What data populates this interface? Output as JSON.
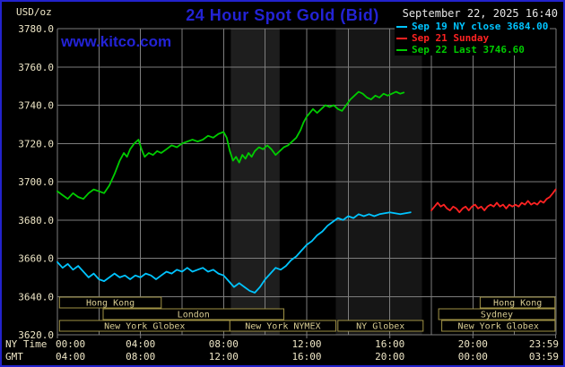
{
  "colors": {
    "background": "#000000",
    "border_blue": "#2222cc",
    "title_blue": "#2323d6",
    "axis_text": "#eee6c6",
    "date_text": "#e6e6e6",
    "grid": "#7d7d7d",
    "session_border": "#a09245",
    "session_text": "#d8cc92"
  },
  "header": {
    "units_label": "USD/oz",
    "title": "24 Hour Spot Gold (Bid)",
    "datetime": "September 22, 2025 16:40",
    "watermark": "www.kitco.com",
    "legend": [
      {
        "label": "Sep 19 NY close 3684.00",
        "color": "#00c4ff"
      },
      {
        "label": "Sep 21 Sunday",
        "color": "#ff2222"
      },
      {
        "label": "Sep 22 Last 3746.60",
        "color": "#00cc00"
      }
    ]
  },
  "axes": {
    "ny_time_label": "NY Time",
    "gmt_label": "GMT",
    "ny_ticks": [
      "00:00",
      "04:00",
      "08:00",
      "12:00",
      "16:00",
      "20:00",
      "23:59"
    ],
    "gmt_ticks": [
      "04:00",
      "08:00",
      "12:00",
      "16:00",
      "20:00",
      "00:00",
      "03:59"
    ],
    "y_ticks": [
      "3780.0",
      "3760.0",
      "3740.0",
      "3720.0",
      "3700.0",
      "3680.0",
      "3660.0",
      "3640.0",
      "3620.0"
    ]
  },
  "chart_data": {
    "type": "line",
    "title": "24 Hour Spot Gold (Bid)",
    "xlabel": "NY Time",
    "ylabel": "USD/oz",
    "xlim_hours": [
      0,
      24
    ],
    "ylim": [
      3620,
      3780
    ],
    "y_step": 20,
    "x_grid_step": 2,
    "grid": true,
    "x_tick_hours": [
      0,
      4,
      8,
      12,
      16,
      20,
      23.983
    ],
    "bands": [
      {
        "t0": 8.35,
        "t1": 10.7,
        "color": "#1e1e1e"
      },
      {
        "t0": 13.4,
        "t1": 17.55,
        "color": "#161616"
      }
    ],
    "sessions": [
      {
        "row": 0,
        "label": "Hong Kong",
        "t0": 0.1,
        "t1": 5.0
      },
      {
        "row": 0,
        "label": "Hong Kong",
        "t0": 20.35,
        "t1": 23.95
      },
      {
        "row": 1,
        "label": "London",
        "t0": 2.2,
        "t1": 10.9
      },
      {
        "row": 1,
        "label": "Sydney",
        "t0": 18.35,
        "t1": 23.95
      },
      {
        "row": 2,
        "label": "New York Globex",
        "t0": 0.1,
        "t1": 8.3
      },
      {
        "row": 2,
        "label": "New York NYMEX",
        "t0": 8.3,
        "t1": 13.4
      },
      {
        "row": 2,
        "label": "NY Globex",
        "t0": 13.5,
        "t1": 17.6
      },
      {
        "row": 2,
        "label": "New York Globex",
        "t0": 18.5,
        "t1": 23.95
      }
    ],
    "series": [
      {
        "id": "sep19",
        "name": "Sep 19 NY close 3684.00",
        "close": 3684.0,
        "color": "#00c4ff",
        "points": [
          [
            0,
            3658
          ],
          [
            0.25,
            3655
          ],
          [
            0.5,
            3657
          ],
          [
            0.75,
            3654
          ],
          [
            1,
            3656
          ],
          [
            1.25,
            3653
          ],
          [
            1.5,
            3650
          ],
          [
            1.75,
            3652
          ],
          [
            2,
            3649
          ],
          [
            2.25,
            3648
          ],
          [
            2.5,
            3650
          ],
          [
            2.75,
            3652
          ],
          [
            3,
            3650
          ],
          [
            3.25,
            3651
          ],
          [
            3.5,
            3649
          ],
          [
            3.75,
            3651
          ],
          [
            4,
            3650
          ],
          [
            4.25,
            3652
          ],
          [
            4.5,
            3651
          ],
          [
            4.75,
            3649
          ],
          [
            5,
            3651
          ],
          [
            5.25,
            3653
          ],
          [
            5.5,
            3652
          ],
          [
            5.75,
            3654
          ],
          [
            6,
            3653
          ],
          [
            6.25,
            3655
          ],
          [
            6.5,
            3653
          ],
          [
            6.75,
            3654
          ],
          [
            7,
            3655
          ],
          [
            7.25,
            3653
          ],
          [
            7.5,
            3654
          ],
          [
            7.75,
            3652
          ],
          [
            8,
            3651
          ],
          [
            8.25,
            3648
          ],
          [
            8.5,
            3645
          ],
          [
            8.75,
            3647
          ],
          [
            9,
            3645
          ],
          [
            9.25,
            3643
          ],
          [
            9.5,
            3642
          ],
          [
            9.75,
            3645
          ],
          [
            10,
            3649
          ],
          [
            10.25,
            3652
          ],
          [
            10.5,
            3655
          ],
          [
            10.75,
            3654
          ],
          [
            11,
            3656
          ],
          [
            11.25,
            3659
          ],
          [
            11.5,
            3661
          ],
          [
            11.75,
            3664
          ],
          [
            12,
            3667
          ],
          [
            12.25,
            3669
          ],
          [
            12.5,
            3672
          ],
          [
            12.75,
            3674
          ],
          [
            13,
            3677
          ],
          [
            13.25,
            3679
          ],
          [
            13.5,
            3681
          ],
          [
            13.75,
            3680
          ],
          [
            14,
            3682
          ],
          [
            14.25,
            3681
          ],
          [
            14.5,
            3683
          ],
          [
            14.75,
            3682
          ],
          [
            15,
            3683
          ],
          [
            15.25,
            3682
          ],
          [
            15.5,
            3683
          ],
          [
            16,
            3684
          ],
          [
            16.5,
            3683
          ],
          [
            17,
            3684
          ]
        ]
      },
      {
        "id": "sep21",
        "name": "Sep 21 Sunday",
        "color": "#ff2222",
        "points": [
          [
            18,
            3685
          ],
          [
            18.15,
            3687
          ],
          [
            18.3,
            3689
          ],
          [
            18.45,
            3687
          ],
          [
            18.6,
            3688
          ],
          [
            18.75,
            3686
          ],
          [
            18.9,
            3685
          ],
          [
            19.05,
            3687
          ],
          [
            19.2,
            3686
          ],
          [
            19.35,
            3684
          ],
          [
            19.5,
            3686
          ],
          [
            19.65,
            3687
          ],
          [
            19.8,
            3685
          ],
          [
            19.95,
            3687
          ],
          [
            20.1,
            3688
          ],
          [
            20.25,
            3686
          ],
          [
            20.4,
            3687
          ],
          [
            20.55,
            3685
          ],
          [
            20.7,
            3687
          ],
          [
            20.85,
            3688
          ],
          [
            21,
            3687
          ],
          [
            21.15,
            3689
          ],
          [
            21.3,
            3687
          ],
          [
            21.45,
            3688
          ],
          [
            21.6,
            3686
          ],
          [
            21.75,
            3688
          ],
          [
            21.9,
            3687
          ],
          [
            22.05,
            3688
          ],
          [
            22.2,
            3687
          ],
          [
            22.35,
            3689
          ],
          [
            22.5,
            3688
          ],
          [
            22.65,
            3690
          ],
          [
            22.8,
            3688
          ],
          [
            22.95,
            3689
          ],
          [
            23.1,
            3688
          ],
          [
            23.25,
            3690
          ],
          [
            23.4,
            3689
          ],
          [
            23.55,
            3691
          ],
          [
            23.7,
            3692
          ],
          [
            23.85,
            3694
          ],
          [
            23.98,
            3696
          ]
        ]
      },
      {
        "id": "sep22",
        "name": "Sep 22 Last 3746.60",
        "last": 3746.6,
        "color": "#00cc00",
        "points": [
          [
            0,
            3695
          ],
          [
            0.25,
            3693
          ],
          [
            0.5,
            3691
          ],
          [
            0.75,
            3694
          ],
          [
            1,
            3692
          ],
          [
            1.25,
            3691
          ],
          [
            1.5,
            3694
          ],
          [
            1.75,
            3696
          ],
          [
            2,
            3695
          ],
          [
            2.25,
            3694
          ],
          [
            2.5,
            3698
          ],
          [
            2.75,
            3704
          ],
          [
            3,
            3711
          ],
          [
            3.2,
            3715
          ],
          [
            3.35,
            3713
          ],
          [
            3.5,
            3717
          ],
          [
            3.7,
            3720
          ],
          [
            3.9,
            3722
          ],
          [
            4.05,
            3717
          ],
          [
            4.2,
            3713
          ],
          [
            4.4,
            3715
          ],
          [
            4.6,
            3714
          ],
          [
            4.8,
            3716
          ],
          [
            5,
            3715
          ],
          [
            5.25,
            3717
          ],
          [
            5.5,
            3719
          ],
          [
            5.75,
            3718
          ],
          [
            6,
            3720
          ],
          [
            6.25,
            3721
          ],
          [
            6.5,
            3722
          ],
          [
            6.75,
            3721
          ],
          [
            7,
            3722
          ],
          [
            7.25,
            3724
          ],
          [
            7.5,
            3723
          ],
          [
            7.75,
            3725
          ],
          [
            8,
            3726
          ],
          [
            8.15,
            3723
          ],
          [
            8.3,
            3716
          ],
          [
            8.45,
            3711
          ],
          [
            8.6,
            3713
          ],
          [
            8.75,
            3710
          ],
          [
            8.9,
            3714
          ],
          [
            9.05,
            3712
          ],
          [
            9.2,
            3715
          ],
          [
            9.35,
            3713
          ],
          [
            9.5,
            3716
          ],
          [
            9.7,
            3718
          ],
          [
            9.9,
            3717
          ],
          [
            10.1,
            3719
          ],
          [
            10.3,
            3717
          ],
          [
            10.5,
            3714
          ],
          [
            10.7,
            3716
          ],
          [
            10.9,
            3718
          ],
          [
            11.1,
            3719
          ],
          [
            11.3,
            3721
          ],
          [
            11.5,
            3723
          ],
          [
            11.7,
            3727
          ],
          [
            11.85,
            3731
          ],
          [
            12,
            3734
          ],
          [
            12.15,
            3736
          ],
          [
            12.3,
            3738
          ],
          [
            12.5,
            3736
          ],
          [
            12.7,
            3738
          ],
          [
            12.9,
            3740
          ],
          [
            13.1,
            3739
          ],
          [
            13.3,
            3740
          ],
          [
            13.5,
            3738
          ],
          [
            13.7,
            3737
          ],
          [
            13.9,
            3740
          ],
          [
            14.1,
            3743
          ],
          [
            14.3,
            3745
          ],
          [
            14.5,
            3747
          ],
          [
            14.7,
            3746
          ],
          [
            14.9,
            3744
          ],
          [
            15.1,
            3743
          ],
          [
            15.3,
            3745
          ],
          [
            15.5,
            3744
          ],
          [
            15.7,
            3746
          ],
          [
            15.9,
            3745
          ],
          [
            16.1,
            3746
          ],
          [
            16.3,
            3747
          ],
          [
            16.5,
            3746
          ],
          [
            16.67,
            3746.6
          ]
        ]
      }
    ]
  }
}
